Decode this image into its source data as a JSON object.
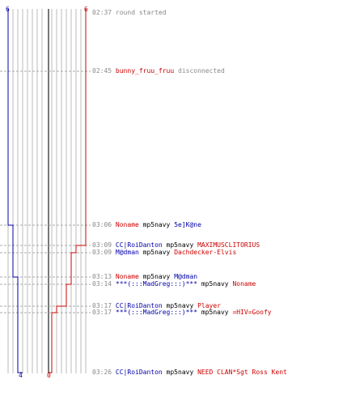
{
  "colors": {
    "red": "#cc0000",
    "blue": "#0000aa",
    "grid": "#bbbbbb",
    "time": "#888888",
    "dash": "#aaaaaa"
  },
  "scores": {
    "blue_start": "6",
    "red_start": "6",
    "blue_end": "4",
    "red_end": "0"
  },
  "events": [
    {
      "time": "02:37",
      "kind": "note",
      "text": "round started"
    },
    {
      "time": "02:45",
      "kind": "disconnect",
      "player": "bunny_fruu_fruu",
      "pteam": "red",
      "text": "disconnected"
    },
    {
      "time": "03:06",
      "kind": "kill",
      "killer": "Noname",
      "kteam": "red",
      "weapon": "mp5navy",
      "victim": "5e]K@ne",
      "vteam": "blue"
    },
    {
      "time": "03:09",
      "kind": "kill",
      "killer": "CC|RoiDanton",
      "kteam": "blue",
      "weapon": "mp5navy",
      "victim": "MAXIMUSCLITORIUS",
      "vteam": "red"
    },
    {
      "time": "03:09",
      "kind": "kill",
      "killer": "M@dman",
      "kteam": "blue",
      "weapon": "mp5navy",
      "victim": "Dachdecker-Elvis",
      "vteam": "red"
    },
    {
      "time": "03:13",
      "kind": "kill",
      "killer": "Noname",
      "kteam": "red",
      "weapon": "mp5navy",
      "victim": "M@dman",
      "vteam": "blue"
    },
    {
      "time": "03:14",
      "kind": "kill",
      "killer": "***(:::MadGreg:::)***",
      "kteam": "blue",
      "weapon": "mp5navy",
      "victim": "Noname",
      "vteam": "red"
    },
    {
      "time": "03:17",
      "kind": "kill",
      "killer": "CC|RoiDanton",
      "kteam": "blue",
      "weapon": "mp5navy",
      "victim": "Player",
      "vteam": "red"
    },
    {
      "time": "03:17",
      "kind": "kill",
      "killer": "***(:::MadGreg:::)***",
      "kteam": "blue",
      "weapon": "mp5navy",
      "victim": "=HIV=Goofy",
      "vteam": "red"
    },
    {
      "time": "03:26",
      "kind": "kill",
      "killer": "CC|RoiDanton",
      "kteam": "blue",
      "weapon": "mp5navy",
      "victim": "NEED CLAN*Sgt Ross Kent",
      "vteam": "red"
    }
  ]
}
